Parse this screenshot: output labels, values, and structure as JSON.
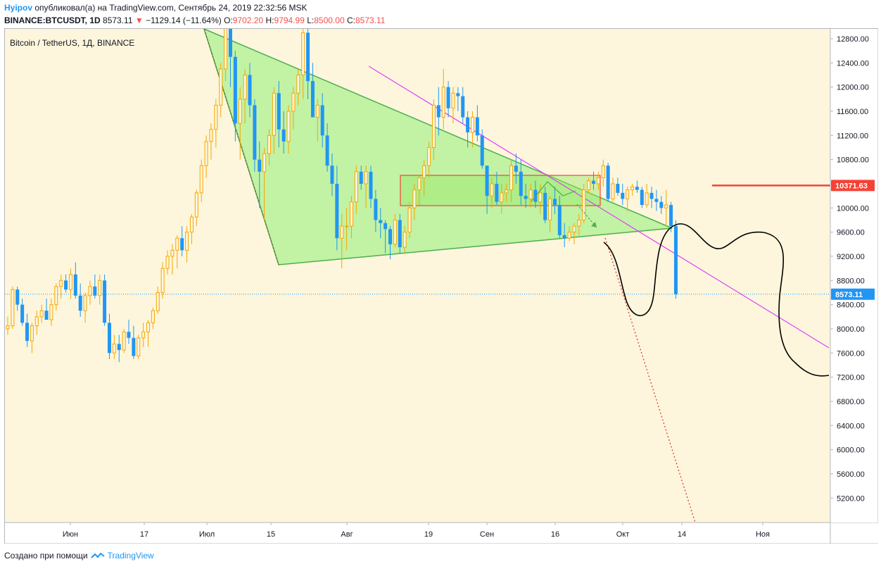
{
  "header": {
    "author": "Hyipov",
    "published_text": "опубликовал(а) на TradingView.com, Сентябрь 24, 2019 22:32:56 MSK",
    "symbol": "BINANCE:BTCUSDT, 1D",
    "last": "8573.11",
    "change": "−1129.14 (−11.64%)",
    "o_label": "O:",
    "o_value": "9702.20",
    "h_label": "H:",
    "h_value": "9794.99",
    "l_label": "L:",
    "l_value": "8500.00",
    "c_label": "C:",
    "c_value": "8573.11"
  },
  "legend_label": "Bitcoin / TetherUS, 1Д, BINANCE",
  "footer": {
    "prefix": "Создано при помощи",
    "brand": "TradingView"
  },
  "colors": {
    "up": "#f7a600",
    "down": "#2196f3",
    "triangle_fill": "#b7f19a",
    "triangle_stroke": "#4caf50",
    "trend_magenta": "#e040fb",
    "resistance": "#f44336",
    "dotted_red": "#e53935",
    "last_price_line": "#2196f3",
    "hand_drawn": "#000000"
  },
  "chart_data": {
    "type": "candlestick",
    "y_axis_ticks": [
      "12800.00",
      "12400.00",
      "12000.00",
      "11600.00",
      "11200.00",
      "10800.00",
      "10400.00",
      "10000.00",
      "9600.00",
      "9200.00",
      "8800.00",
      "8400.00",
      "8000.00",
      "7600.00",
      "7200.00",
      "6800.00",
      "6400.00",
      "6000.00",
      "5600.00",
      "5200.00"
    ],
    "ylim": [
      4800,
      13000
    ],
    "x_axis_ticks": [
      "Июн",
      "17",
      "Июл",
      "15",
      "Авг",
      "19",
      "Сен",
      "16",
      "Окт",
      "14",
      "Ноя"
    ],
    "price_tags": [
      {
        "label": "10371.63",
        "value": 10371.63,
        "kind": "resistance"
      },
      {
        "label": "8573.11",
        "value": 8573.11,
        "kind": "last"
      }
    ],
    "candles": [
      [
        8000,
        8200,
        7900,
        8050
      ],
      [
        8050,
        8700,
        8000,
        8650
      ],
      [
        8650,
        8700,
        8300,
        8400
      ],
      [
        8400,
        8500,
        8050,
        8100
      ],
      [
        8100,
        8250,
        7700,
        7800
      ],
      [
        7800,
        8100,
        7600,
        8050
      ],
      [
        8050,
        8300,
        7900,
        8200
      ],
      [
        8200,
        8400,
        8100,
        8300
      ],
      [
        8300,
        8500,
        8200,
        8150
      ],
      [
        8150,
        8500,
        8050,
        8400
      ],
      [
        8400,
        8750,
        8300,
        8700
      ],
      [
        8700,
        8900,
        8500,
        8800
      ],
      [
        8800,
        8900,
        8600,
        8650
      ],
      [
        8650,
        9000,
        8500,
        8900
      ],
      [
        8900,
        9100,
        8500,
        8550
      ],
      [
        8550,
        8750,
        8200,
        8300
      ],
      [
        8300,
        8600,
        8100,
        8550
      ],
      [
        8550,
        8800,
        8400,
        8700
      ],
      [
        8700,
        8900,
        8500,
        8550
      ],
      [
        8550,
        8900,
        8400,
        8800
      ],
      [
        8800,
        8900,
        8050,
        8100
      ],
      [
        8100,
        8250,
        7500,
        7600
      ],
      [
        7600,
        7900,
        7500,
        7750
      ],
      [
        7750,
        7900,
        7450,
        7650
      ],
      [
        7650,
        8000,
        7600,
        7950
      ],
      [
        7950,
        8150,
        7750,
        7850
      ],
      [
        7850,
        8050,
        7500,
        7550
      ],
      [
        7550,
        7900,
        7500,
        7850
      ],
      [
        7850,
        8100,
        7700,
        7950
      ],
      [
        7950,
        8150,
        7700,
        8100
      ],
      [
        8100,
        8350,
        8000,
        8300
      ],
      [
        8300,
        8700,
        8250,
        8600
      ],
      [
        8600,
        9100,
        8500,
        9000
      ],
      [
        9000,
        9300,
        8900,
        9200
      ],
      [
        9200,
        9400,
        8900,
        9300
      ],
      [
        9300,
        9550,
        9000,
        9500
      ],
      [
        9500,
        9700,
        9200,
        9300
      ],
      [
        9300,
        9700,
        9100,
        9600
      ],
      [
        9600,
        9900,
        9400,
        9850
      ],
      [
        9850,
        10300,
        9700,
        10250
      ],
      [
        10250,
        10800,
        10100,
        10700
      ],
      [
        10700,
        11200,
        10500,
        11100
      ],
      [
        11100,
        11400,
        10800,
        11300
      ],
      [
        11300,
        11800,
        11000,
        11700
      ],
      [
        11700,
        12400,
        11500,
        12300
      ],
      [
        12300,
        13500,
        12100,
        13300
      ],
      [
        13300,
        13800,
        12000,
        12500
      ],
      [
        12500,
        12600,
        11100,
        11400
      ],
      [
        11400,
        12000,
        10800,
        11800
      ],
      [
        11800,
        12300,
        11400,
        12200
      ],
      [
        12200,
        12400,
        11500,
        11700
      ],
      [
        11700,
        11800,
        10600,
        10800
      ],
      [
        10800,
        11100,
        10000,
        10600
      ],
      [
        10600,
        11000,
        9800,
        10900
      ],
      [
        10900,
        11300,
        10700,
        11200
      ],
      [
        11200,
        12000,
        10900,
        11900
      ],
      [
        11900,
        12100,
        11000,
        11300
      ],
      [
        11300,
        11600,
        10900,
        11100
      ],
      [
        11100,
        11700,
        10900,
        11600
      ],
      [
        11600,
        12000,
        11300,
        11900
      ],
      [
        11900,
        12300,
        11700,
        12200
      ],
      [
        12200,
        13000,
        11800,
        12900
      ],
      [
        12900,
        13000,
        11800,
        12100
      ],
      [
        12100,
        12400,
        11500,
        11500
      ],
      [
        11500,
        11800,
        11100,
        11700
      ],
      [
        11700,
        11900,
        11000,
        11200
      ],
      [
        11200,
        11400,
        10600,
        10700
      ],
      [
        10700,
        10900,
        10200,
        10400
      ],
      [
        10400,
        10700,
        9300,
        9500
      ],
      [
        9500,
        9900,
        9000,
        9700
      ],
      [
        9700,
        10000,
        9300,
        9700
      ],
      [
        9700,
        10200,
        9500,
        10100
      ],
      [
        10100,
        10700,
        9900,
        10600
      ],
      [
        10600,
        10700,
        10300,
        10400
      ],
      [
        10400,
        10700,
        10000,
        10600
      ],
      [
        10600,
        10700,
        10000,
        10150
      ],
      [
        10150,
        10300,
        9600,
        9800
      ],
      [
        9800,
        10000,
        9500,
        9750
      ],
      [
        9750,
        9800,
        9250,
        9650
      ],
      [
        9650,
        9700,
        9150,
        9400
      ],
      [
        9400,
        9900,
        9350,
        9800
      ],
      [
        9800,
        9900,
        9250,
        9350
      ],
      [
        9350,
        9700,
        9250,
        9600
      ],
      [
        9600,
        10100,
        9500,
        10000
      ],
      [
        10000,
        10400,
        9800,
        10300
      ],
      [
        10300,
        10550,
        10050,
        10500
      ],
      [
        10500,
        10800,
        10200,
        10700
      ],
      [
        10700,
        11100,
        10500,
        11000
      ],
      [
        11000,
        11800,
        10800,
        11700
      ],
      [
        11700,
        12000,
        11200,
        11500
      ],
      [
        11500,
        12300,
        11300,
        12000
      ],
      [
        12000,
        12100,
        11500,
        11650
      ],
      [
        11650,
        12000,
        11400,
        11900
      ],
      [
        11900,
        12000,
        11600,
        11850
      ],
      [
        11850,
        12000,
        11400,
        11500
      ],
      [
        11500,
        11600,
        11000,
        11250
      ],
      [
        11250,
        11600,
        11000,
        11500
      ],
      [
        11500,
        11700,
        11100,
        11200
      ],
      [
        11200,
        11300,
        10650,
        10700
      ],
      [
        10700,
        10700,
        9900,
        10200
      ],
      [
        10200,
        10500,
        10000,
        10400
      ],
      [
        10400,
        10600,
        10050,
        10100
      ],
      [
        10100,
        10400,
        9900,
        10250
      ],
      [
        10250,
        10400,
        10100,
        10300
      ],
      [
        10300,
        10800,
        10100,
        10700
      ],
      [
        10700,
        10900,
        10400,
        10600
      ],
      [
        10600,
        10800,
        10050,
        10200
      ],
      [
        10200,
        10400,
        10000,
        10150
      ],
      [
        10150,
        10400,
        10000,
        10300
      ],
      [
        10300,
        10450,
        10000,
        10100
      ],
      [
        10100,
        10400,
        9900,
        10250
      ],
      [
        10250,
        10350,
        9750,
        9800
      ],
      [
        9800,
        10200,
        9600,
        10150
      ],
      [
        10150,
        10350,
        9900,
        10050
      ],
      [
        10050,
        10200,
        9500,
        9550
      ],
      [
        9550,
        9750,
        9350,
        9500
      ],
      [
        9500,
        9700,
        9450,
        9600
      ],
      [
        9600,
        9750,
        9400,
        9700
      ],
      [
        9700,
        9900,
        9550,
        9800
      ],
      [
        9800,
        10400,
        9750,
        10300
      ],
      [
        10300,
        10500,
        10250,
        10450
      ],
      [
        10450,
        10600,
        10300,
        10400
      ],
      [
        10400,
        10600,
        10300,
        10500
      ],
      [
        10500,
        10800,
        10350,
        10700
      ],
      [
        10700,
        10750,
        10100,
        10150
      ],
      [
        10150,
        10500,
        10100,
        10400
      ],
      [
        10400,
        10500,
        10200,
        10250
      ],
      [
        10250,
        10400,
        10050,
        10150
      ],
      [
        10150,
        10350,
        9950,
        10300
      ],
      [
        10300,
        10400,
        10200,
        10350
      ],
      [
        10350,
        10450,
        10250,
        10300
      ],
      [
        10300,
        10350,
        10000,
        10050
      ],
      [
        10050,
        10400,
        10000,
        10250
      ],
      [
        10250,
        10350,
        10000,
        10150
      ],
      [
        10150,
        10300,
        9950,
        10100
      ],
      [
        10100,
        10200,
        9900,
        10000
      ],
      [
        10000,
        10300,
        9700,
        10050
      ],
      [
        10050,
        10100,
        9600,
        9700
      ],
      [
        9702.2,
        9794.99,
        8500,
        8573.11
      ]
    ]
  }
}
